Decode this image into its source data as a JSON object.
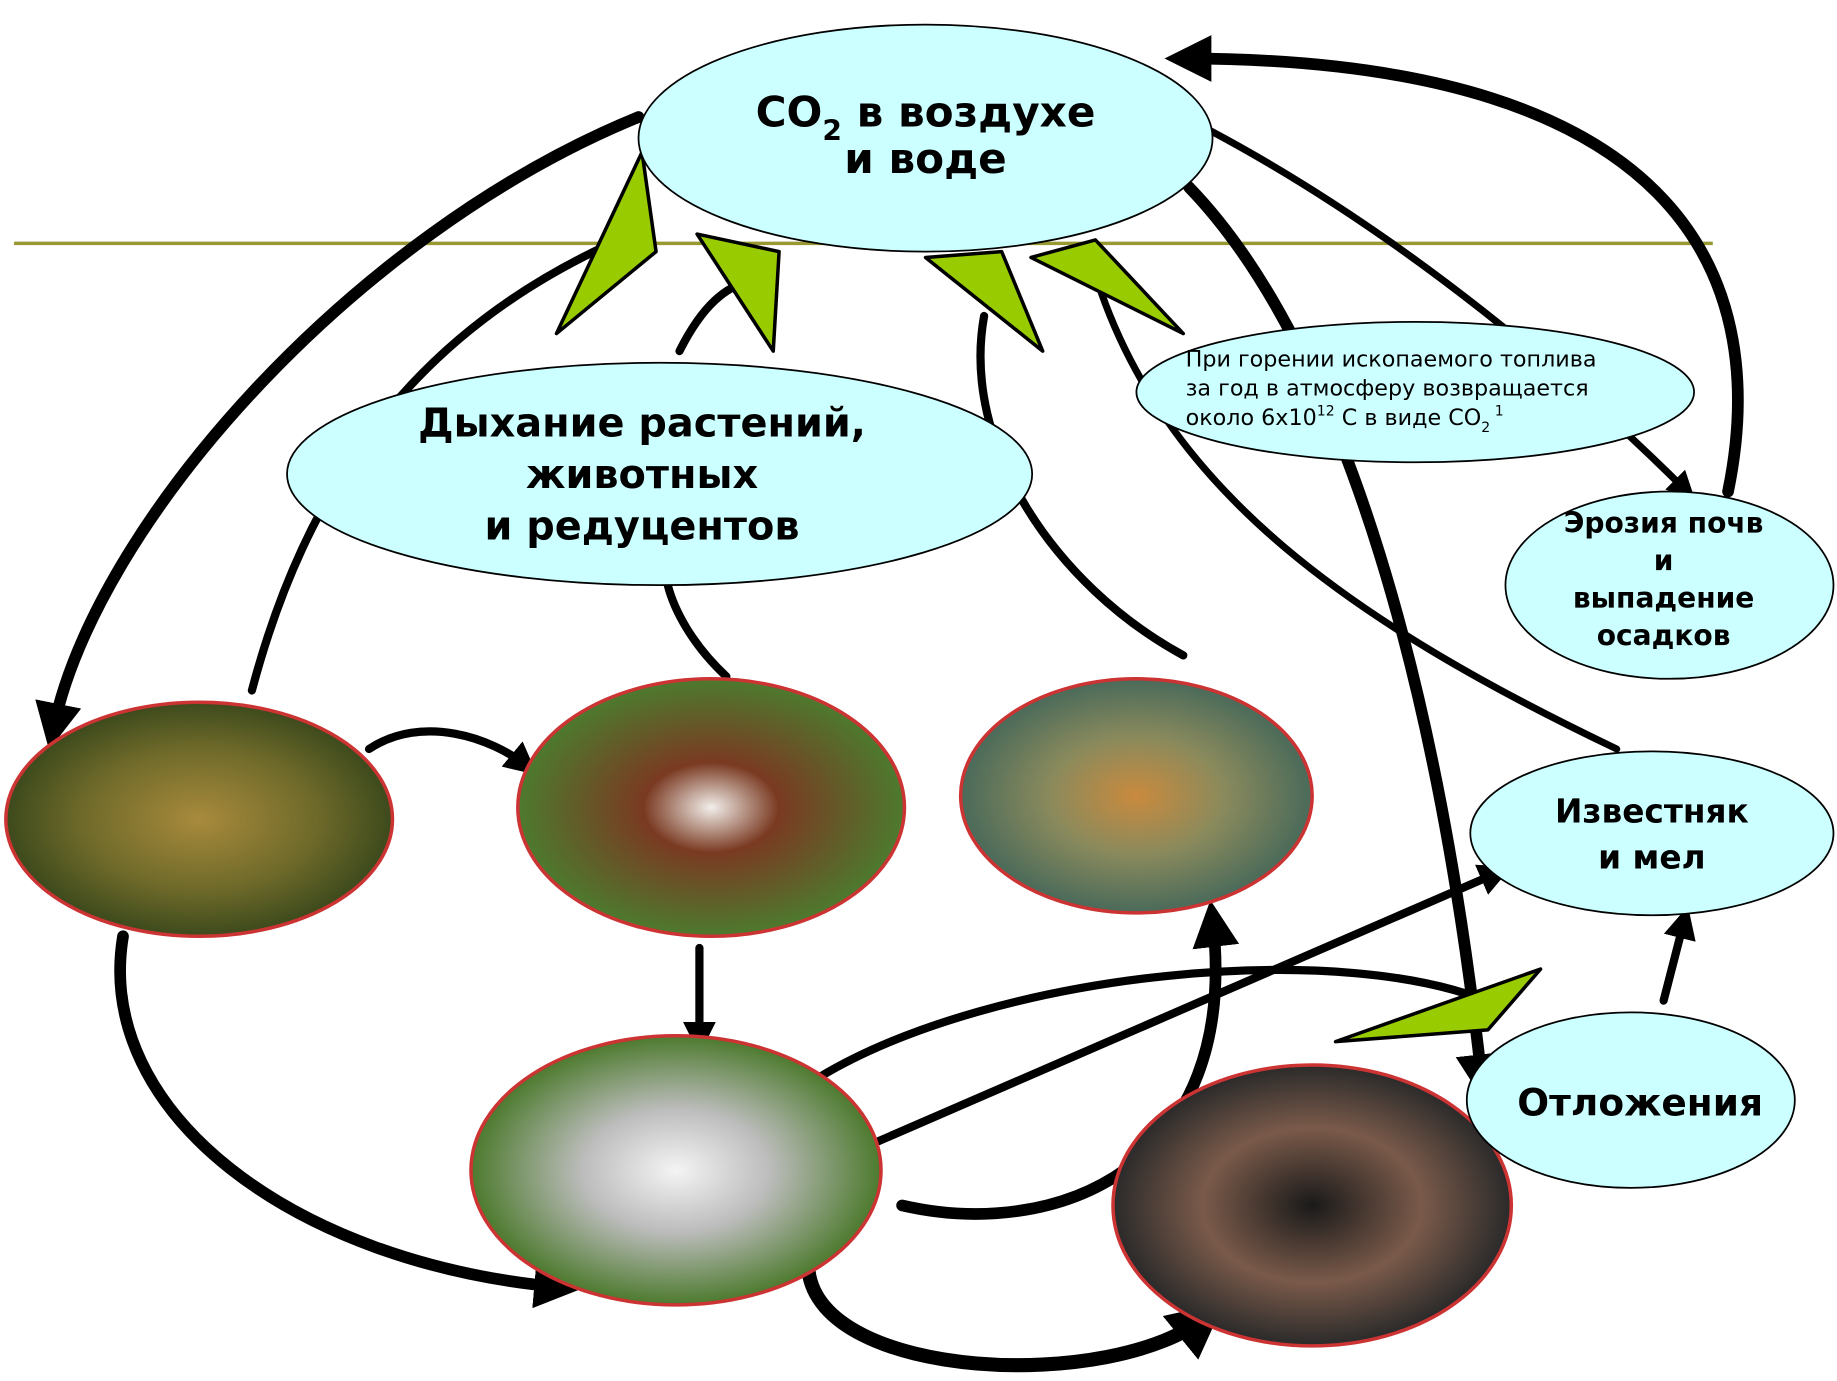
{
  "co2": {
    "main": "CO",
    "sub": "2",
    "rest": " в воздухе",
    "line2": "и воде"
  },
  "respiration": {
    "lines": [
      "Дыхание растений,",
      "животных",
      "и редуцентов"
    ]
  },
  "fuel_note": {
    "line1": "При горении ископаемого топлива",
    "line2": "за год в атмосферу возвращается",
    "line3_a": "около 6x10",
    "line3_sup": "12",
    "line3_b": " С в виде СО",
    "line3_sub": "2",
    "line3_sup2": " 1"
  },
  "erosion": {
    "lines": [
      "Эрозия почв",
      "и",
      "выпадение",
      "осадков"
    ]
  },
  "limestone": {
    "lines": [
      "Известняк",
      "и мел"
    ]
  },
  "deposits": {
    "label": "Отложения"
  }
}
